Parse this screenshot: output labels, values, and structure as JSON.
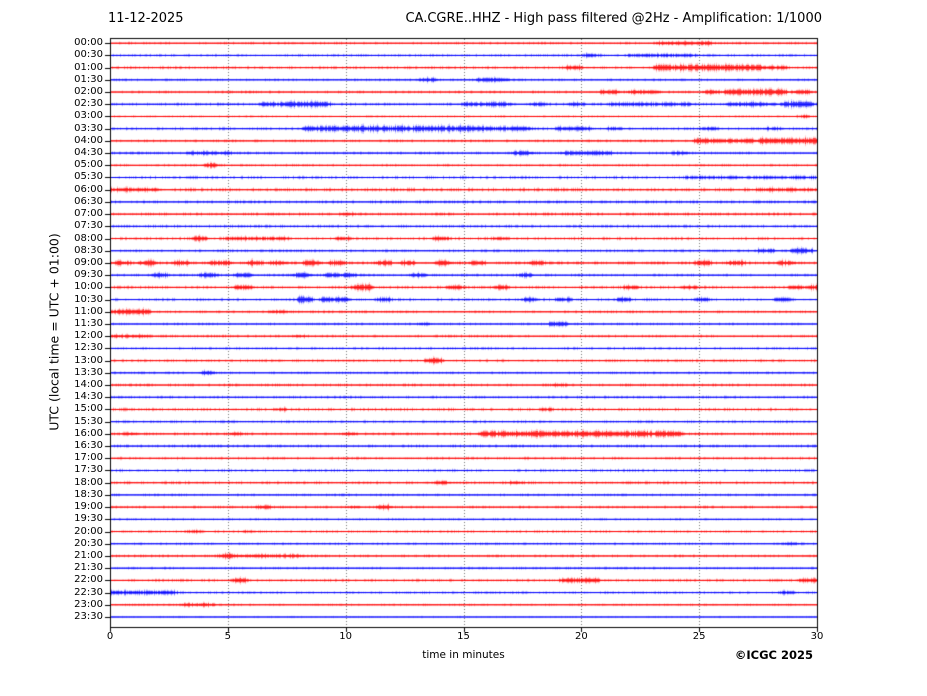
{
  "header": {
    "date": "11-12-2025",
    "title": "CA.CGRE..HHZ - High pass filtered @2Hz - Amplification: 1/1000"
  },
  "axes": {
    "ylabel": "UTC (local time = UTC + 01:00)",
    "xlabel": "time in minutes",
    "x_ticks": [
      "0",
      "5",
      "10",
      "15",
      "20",
      "25",
      "30"
    ]
  },
  "footer": {
    "credit": "©ICGC 2025"
  },
  "chart_data": {
    "type": "line",
    "subtype": "helicorder-seismogram",
    "title": "CA.CGRE..HHZ - High pass filtered @2Hz - Amplification: 1/1000",
    "date": "11-12-2025",
    "xlabel": "time in minutes",
    "ylabel": "UTC (local time = UTC + 01:00)",
    "x_range_minutes": [
      0,
      30
    ],
    "minutes_per_row": 30,
    "grid_minutes": [
      5,
      10,
      15,
      20,
      25
    ],
    "legend_position": "none",
    "grid": "dotted-vertical",
    "colors": {
      "red": "#ff0000",
      "blue": "#0000ff",
      "grid": "#777777",
      "frame": "#000000"
    },
    "rows": [
      {
        "label": "00:00",
        "color": "red",
        "noise": 0.5,
        "events": [
          [
            23.3,
            25.5,
            1.1
          ]
        ]
      },
      {
        "label": "00:30",
        "color": "blue",
        "noise": 0.5,
        "events": [
          [
            20.2,
            20.6,
            1.1
          ],
          [
            22.0,
            24.8,
            0.9
          ]
        ]
      },
      {
        "label": "01:00",
        "color": "red",
        "noise": 0.55,
        "events": [
          [
            19.4,
            19.9,
            1.4
          ],
          [
            23.2,
            27.6,
            2.1
          ],
          [
            27.7,
            28.6,
            1.1
          ]
        ]
      },
      {
        "label": "01:30",
        "color": "blue",
        "noise": 0.5,
        "events": [
          [
            13.2,
            13.7,
            1.4
          ],
          [
            15.6,
            16.8,
            1.2
          ]
        ]
      },
      {
        "label": "02:00",
        "color": "red",
        "noise": 0.55,
        "events": [
          [
            20.9,
            21.4,
            1.4
          ],
          [
            22.1,
            23.2,
            1.2
          ],
          [
            25.3,
            25.7,
            1.4
          ],
          [
            26.2,
            28.6,
            1.9
          ],
          [
            29.0,
            29.6,
            1.1
          ]
        ]
      },
      {
        "label": "02:30",
        "color": "blue",
        "noise": 0.6,
        "events": [
          [
            6.5,
            6.9,
            1.7
          ],
          [
            7.3,
            9.2,
            1.7
          ],
          [
            15.1,
            16.9,
            1.1
          ],
          [
            17.9,
            18.3,
            1.1
          ],
          [
            19.6,
            20.0,
            1.1
          ],
          [
            21.3,
            24.6,
            0.9
          ],
          [
            26.3,
            28.1,
            1.3
          ],
          [
            28.6,
            29.7,
            1.9
          ]
        ]
      },
      {
        "label": "03:00",
        "color": "red",
        "noise": 0.4,
        "events": [
          [
            29.3,
            29.6,
            0.9
          ]
        ]
      },
      {
        "label": "03:30",
        "color": "blue",
        "noise": 0.6,
        "events": [
          [
            8.3,
            15.3,
            1.9
          ],
          [
            15.3,
            17.8,
            1.3
          ],
          [
            19.0,
            20.3,
            1.2
          ],
          [
            21.2,
            21.6,
            1.1
          ],
          [
            25.2,
            25.6,
            1.0
          ],
          [
            27.9,
            28.4,
            0.9
          ]
        ]
      },
      {
        "label": "04:00",
        "color": "red",
        "noise": 0.55,
        "events": [
          [
            24.9,
            25.4,
            2.1
          ],
          [
            25.6,
            27.2,
            1.3
          ],
          [
            27.6,
            29.9,
            2.2
          ]
        ]
      },
      {
        "label": "04:30",
        "color": "blue",
        "noise": 0.55,
        "events": [
          [
            3.4,
            5.1,
            1.0
          ],
          [
            17.2,
            17.8,
            1.4
          ],
          [
            19.3,
            21.2,
            1.2
          ],
          [
            24.0,
            24.4,
            0.9
          ]
        ]
      },
      {
        "label": "05:00",
        "color": "red",
        "noise": 0.5,
        "events": [
          [
            4.1,
            4.4,
            1.7
          ]
        ]
      },
      {
        "label": "05:30",
        "color": "blue",
        "noise": 0.6,
        "events": [
          [
            24.5,
            30,
            0.7
          ]
        ]
      },
      {
        "label": "06:00",
        "color": "red",
        "noise": 0.7,
        "events": [
          [
            0,
            2.0,
            1.0
          ],
          [
            27.5,
            30,
            0.8
          ]
        ]
      },
      {
        "label": "06:30",
        "color": "blue",
        "noise": 0.65,
        "events": []
      },
      {
        "label": "07:00",
        "color": "red",
        "noise": 0.65,
        "events": [
          [
            9.9,
            10.2,
            0.8
          ]
        ]
      },
      {
        "label": "07:30",
        "color": "blue",
        "noise": 0.6,
        "events": []
      },
      {
        "label": "08:00",
        "color": "red",
        "noise": 0.6,
        "events": [
          [
            3.6,
            4.0,
            1.7
          ],
          [
            5.0,
            7.5,
            1.0
          ],
          [
            9.7,
            10.1,
            1.2
          ],
          [
            13.8,
            14.3,
            1.1
          ],
          [
            16.4,
            16.8,
            1.1
          ]
        ]
      },
      {
        "label": "08:30",
        "color": "blue",
        "noise": 0.55,
        "events": [
          [
            27.5,
            28.1,
            1.3
          ],
          [
            29.0,
            29.7,
            1.7
          ]
        ]
      },
      {
        "label": "09:00",
        "color": "red",
        "noise": 0.65,
        "events": [
          [
            0.3,
            0.7,
            1.4
          ],
          [
            1.3,
            1.8,
            1.5
          ],
          [
            2.8,
            3.2,
            1.5
          ],
          [
            4.3,
            5.0,
            1.7
          ],
          [
            5.9,
            6.3,
            1.5
          ],
          [
            6.9,
            7.3,
            1.4
          ],
          [
            8.3,
            8.8,
            1.7
          ],
          [
            9.4,
            9.8,
            1.5
          ],
          [
            11.4,
            11.8,
            1.6
          ],
          [
            12.4,
            12.8,
            1.5
          ],
          [
            13.9,
            14.3,
            1.6
          ],
          [
            15.4,
            15.8,
            1.4
          ],
          [
            17.9,
            18.3,
            1.3
          ],
          [
            24.9,
            25.4,
            1.5
          ],
          [
            26.3,
            26.8,
            1.5
          ],
          [
            28.4,
            28.9,
            1.4
          ]
        ]
      },
      {
        "label": "09:30",
        "color": "blue",
        "noise": 0.55,
        "events": [
          [
            1.9,
            2.3,
            1.3
          ],
          [
            3.9,
            4.4,
            1.5
          ],
          [
            5.4,
            5.9,
            1.5
          ],
          [
            7.9,
            8.4,
            1.7
          ],
          [
            9.2,
            9.6,
            1.5
          ],
          [
            9.9,
            10.3,
            1.4
          ],
          [
            12.9,
            13.3,
            1.5
          ],
          [
            17.4,
            17.8,
            1.4
          ]
        ]
      },
      {
        "label": "10:00",
        "color": "red",
        "noise": 0.6,
        "events": [
          [
            5.4,
            5.9,
            1.6
          ],
          [
            10.4,
            11.0,
            2.1
          ],
          [
            14.4,
            14.8,
            1.4
          ],
          [
            16.4,
            16.8,
            1.3
          ],
          [
            21.9,
            22.3,
            1.2
          ],
          [
            24.4,
            24.8,
            1.2
          ],
          [
            28.9,
            29.3,
            1.2
          ],
          [
            29.6,
            30,
            1.4
          ]
        ]
      },
      {
        "label": "10:30",
        "color": "blue",
        "noise": 0.55,
        "events": [
          [
            8.1,
            8.4,
            3.2
          ],
          [
            9.0,
            9.4,
            1.8
          ],
          [
            9.6,
            10.0,
            1.7
          ],
          [
            11.4,
            11.8,
            1.5
          ],
          [
            17.6,
            18.0,
            1.4
          ],
          [
            19.0,
            19.4,
            1.3
          ],
          [
            21.6,
            22.0,
            1.4
          ],
          [
            24.9,
            25.3,
            1.2
          ],
          [
            28.3,
            28.7,
            1.3
          ]
        ]
      },
      {
        "label": "11:00",
        "color": "red",
        "noise": 0.55,
        "events": [
          [
            0,
            1.6,
            1.7
          ],
          [
            6.9,
            7.3,
            0.9
          ]
        ]
      },
      {
        "label": "11:30",
        "color": "blue",
        "noise": 0.5,
        "events": [
          [
            13.2,
            13.5,
            0.8
          ],
          [
            18.7,
            19.3,
            1.3
          ]
        ]
      },
      {
        "label": "12:00",
        "color": "red",
        "noise": 0.55,
        "events": [
          [
            0,
            1.5,
            0.9
          ],
          [
            7.9,
            8.2,
            0.8
          ]
        ]
      },
      {
        "label": "12:30",
        "color": "blue",
        "noise": 0.5,
        "events": []
      },
      {
        "label": "13:00",
        "color": "red",
        "noise": 0.55,
        "events": [
          [
            13.5,
            14.0,
            1.9
          ]
        ]
      },
      {
        "label": "13:30",
        "color": "blue",
        "noise": 0.5,
        "events": [
          [
            3.9,
            4.3,
            1.5
          ]
        ]
      },
      {
        "label": "14:00",
        "color": "red",
        "noise": 0.6,
        "events": [
          [
            18.9,
            19.3,
            0.8
          ]
        ]
      },
      {
        "label": "14:30",
        "color": "blue",
        "noise": 0.55,
        "events": []
      },
      {
        "label": "15:00",
        "color": "red",
        "noise": 0.6,
        "events": [
          [
            7.1,
            7.4,
            0.8
          ],
          [
            18.4,
            18.7,
            0.8
          ]
        ]
      },
      {
        "label": "15:30",
        "color": "blue",
        "noise": 0.55,
        "events": []
      },
      {
        "label": "16:00",
        "color": "red",
        "noise": 0.6,
        "events": [
          [
            0.7,
            1.0,
            0.9
          ],
          [
            5.2,
            5.5,
            0.9
          ],
          [
            10.0,
            10.3,
            0.9
          ],
          [
            15.8,
            24.1,
            1.9
          ]
        ]
      },
      {
        "label": "16:30",
        "color": "blue",
        "noise": 0.6,
        "events": []
      },
      {
        "label": "17:00",
        "color": "red",
        "noise": 0.55,
        "events": []
      },
      {
        "label": "17:30",
        "color": "blue",
        "noise": 0.55,
        "events": []
      },
      {
        "label": "18:00",
        "color": "red",
        "noise": 0.6,
        "events": [
          [
            13.9,
            14.3,
            1.1
          ],
          [
            17.0,
            17.4,
            0.9
          ]
        ]
      },
      {
        "label": "18:30",
        "color": "blue",
        "noise": 0.5,
        "events": []
      },
      {
        "label": "19:00",
        "color": "red",
        "noise": 0.55,
        "events": [
          [
            6.3,
            6.7,
            1.1
          ],
          [
            10.2,
            10.5,
            0.9
          ],
          [
            11.4,
            11.8,
            1.5
          ]
        ]
      },
      {
        "label": "19:30",
        "color": "blue",
        "noise": 0.45,
        "events": []
      },
      {
        "label": "20:00",
        "color": "red",
        "noise": 0.5,
        "events": [
          [
            3.3,
            3.7,
            0.8
          ],
          [
            5.7,
            6.0,
            0.8
          ]
        ]
      },
      {
        "label": "20:30",
        "color": "blue",
        "noise": 0.5,
        "events": [
          [
            28.7,
            29.1,
            0.9
          ]
        ]
      },
      {
        "label": "21:00",
        "color": "red",
        "noise": 0.55,
        "events": [
          [
            4.7,
            5.1,
            1.6
          ],
          [
            5.1,
            8.0,
            0.9
          ]
        ]
      },
      {
        "label": "21:30",
        "color": "blue",
        "noise": 0.5,
        "events": []
      },
      {
        "label": "22:00",
        "color": "red",
        "noise": 0.55,
        "events": [
          [
            5.3,
            5.7,
            1.4
          ],
          [
            19.2,
            20.6,
            1.6
          ],
          [
            29.3,
            30,
            1.3
          ]
        ]
      },
      {
        "label": "22:30",
        "color": "blue",
        "noise": 0.5,
        "events": [
          [
            0,
            2.3,
            1.2
          ],
          [
            2.3,
            2.7,
            1.5
          ],
          [
            28.5,
            28.9,
            1.3
          ]
        ]
      },
      {
        "label": "23:00",
        "color": "red",
        "noise": 0.45,
        "events": [
          [
            3.2,
            4.3,
            1.1
          ]
        ]
      },
      {
        "label": "23:30",
        "color": "blue",
        "noise": 0.35,
        "events": []
      }
    ]
  }
}
